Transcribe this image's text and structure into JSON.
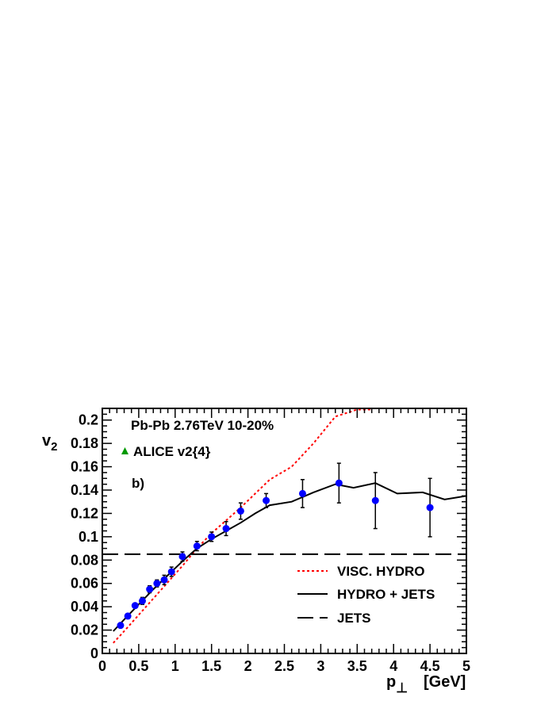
{
  "chart_data": {
    "type": "scatter",
    "title": "Pb-Pb 2.76TeV  10-20%",
    "annotation": "b)",
    "xlabel_main": "p",
    "xlabel_sub": "⊥",
    "xlabel_unit": "[GeV]",
    "ylabel_main": "v",
    "ylabel_sub": "2",
    "xlim": [
      0,
      5
    ],
    "ylim": [
      0,
      0.21
    ],
    "xticks": [
      0,
      0.5,
      1,
      1.5,
      2,
      2.5,
      3,
      3.5,
      4,
      4.5,
      5
    ],
    "xtick_labels": [
      "0",
      "0.5",
      "1",
      "1.5",
      "2",
      "2.5",
      "3",
      "3.5",
      "4",
      "4.5",
      "5"
    ],
    "yticks": [
      0,
      0.02,
      0.04,
      0.06,
      0.08,
      0.1,
      0.12,
      0.14,
      0.16,
      0.18,
      0.2
    ],
    "ytick_labels": [
      "0",
      "0.02",
      "0.04",
      "0.06",
      "0.08",
      "0.1",
      "0.12",
      "0.14",
      "0.16",
      "0.18",
      "0.2"
    ],
    "grid": false,
    "legend_position": "bottom-right",
    "data_legend": {
      "label": "ALICE v2{4}",
      "color": "#009900",
      "marker": "triangle"
    },
    "points": {
      "color": "#0000ff",
      "x": [
        0.25,
        0.35,
        0.45,
        0.55,
        0.65,
        0.75,
        0.85,
        0.95,
        1.1,
        1.3,
        1.5,
        1.7,
        1.9,
        2.25,
        2.75,
        3.25,
        3.75,
        4.5
      ],
      "y": [
        0.024,
        0.032,
        0.041,
        0.045,
        0.055,
        0.06,
        0.063,
        0.07,
        0.083,
        0.092,
        0.1,
        0.107,
        0.122,
        0.131,
        0.137,
        0.146,
        0.131,
        0.125
      ],
      "err": [
        0.002,
        0.002,
        0.002,
        0.003,
        0.003,
        0.003,
        0.004,
        0.004,
        0.004,
        0.004,
        0.004,
        0.006,
        0.007,
        0.006,
        0.012,
        0.017,
        0.024,
        0.025
      ]
    },
    "series": [
      {
        "name": "VISC. HYDRO",
        "color": "#ff0000",
        "style": "dotted",
        "x": [
          0.15,
          0.3,
          0.5,
          0.7,
          0.9,
          1.1,
          1.3,
          1.5,
          1.7,
          1.9,
          2.1,
          2.3,
          2.6,
          2.9,
          3.2,
          3.5,
          3.7
        ],
        "y": [
          0.009,
          0.019,
          0.033,
          0.047,
          0.061,
          0.075,
          0.09,
          0.103,
          0.114,
          0.125,
          0.137,
          0.149,
          0.16,
          0.18,
          0.203,
          0.209,
          0.209
        ]
      },
      {
        "name": "HYDRO + JETS",
        "color": "#000000",
        "style": "solid",
        "x": [
          0.15,
          0.3,
          0.5,
          0.7,
          0.9,
          1.1,
          1.3,
          1.5,
          1.7,
          1.9,
          2.1,
          2.3,
          2.6,
          2.9,
          3.2,
          3.45,
          3.75,
          4.05,
          4.4,
          4.7,
          5.0
        ],
        "y": [
          0.019,
          0.029,
          0.042,
          0.055,
          0.067,
          0.079,
          0.09,
          0.098,
          0.105,
          0.112,
          0.12,
          0.127,
          0.13,
          0.138,
          0.145,
          0.142,
          0.146,
          0.137,
          0.138,
          0.132,
          0.135
        ]
      },
      {
        "name": "JETS",
        "color": "#000000",
        "style": "dashed",
        "x": [
          0,
          5
        ],
        "y": [
          0.085,
          0.085
        ]
      }
    ]
  }
}
